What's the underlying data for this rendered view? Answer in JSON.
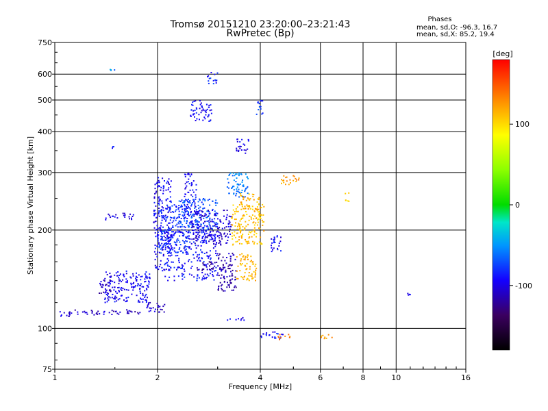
{
  "chart_data": {
    "type": "scatter",
    "title": "Tromsø 20151210 23:20:00–23:21:43",
    "subtitle": "RwPretec (Bp)",
    "xlabel": "Frequency [MHz]",
    "ylabel": "Stationary phase Virtual Height [km]",
    "x_scale": "log",
    "y_scale": "log",
    "xlim": [
      1,
      16
    ],
    "ylim": [
      75,
      750
    ],
    "x_ticks": [
      1,
      2,
      4,
      6,
      8,
      10,
      16
    ],
    "x_tick_labels": [
      "1",
      "2",
      "4",
      "6",
      "8",
      "10",
      "16"
    ],
    "y_ticks": [
      75,
      100,
      200,
      300,
      400,
      500,
      600,
      750
    ],
    "y_tick_labels": [
      "75",
      "100",
      "200",
      "300",
      "400",
      "500",
      "600",
      "750"
    ],
    "grid": true,
    "stats": {
      "header": "Phases",
      "line_o": "mean, sd,O: -96.3, 16.7",
      "line_x": "mean, sd,X:  85.2, 19.4"
    },
    "colorbar": {
      "label": "[deg]",
      "range": [
        -180,
        180
      ],
      "ticks": [
        100,
        0,
        -100
      ],
      "tick_labels": [
        "100",
        "0",
        "-100"
      ]
    },
    "clusters": [
      {
        "f": [
          1.02,
          1.12
        ],
        "h": [
          108,
          113
        ],
        "phase": -105
      },
      {
        "f": [
          1.1,
          1.8
        ],
        "h": [
          110,
          114
        ],
        "phase": -110
      },
      {
        "f": [
          1.8,
          2.1
        ],
        "h": [
          112,
          120
        ],
        "phase": -110
      },
      {
        "f": [
          1.4,
          1.9
        ],
        "h": [
          120,
          150
        ],
        "phase": -95
      },
      {
        "f": [
          1.35,
          1.5
        ],
        "h": [
          128,
          142
        ],
        "phase": -110
      },
      {
        "f": [
          1.95,
          2.2
        ],
        "h": [
          150,
          290
        ],
        "phase": -95
      },
      {
        "f": [
          2.0,
          2.5
        ],
        "h": [
          170,
          240
        ],
        "phase": -80
      },
      {
        "f": [
          2.1,
          3.0
        ],
        "h": [
          140,
          200
        ],
        "phase": -90
      },
      {
        "f": [
          2.3,
          3.0
        ],
        "h": [
          200,
          250
        ],
        "phase": -70
      },
      {
        "f": [
          2.5,
          3.3
        ],
        "h": [
          180,
          230
        ],
        "phase": -105
      },
      {
        "f": [
          2.6,
          3.2
        ],
        "h": [
          150,
          160
        ],
        "phase": -120
      },
      {
        "f": [
          3.0,
          3.4
        ],
        "h": [
          130,
          170
        ],
        "phase": -115
      },
      {
        "f": [
          3.3,
          4.1
        ],
        "h": [
          180,
          240
        ],
        "phase": 110
      },
      {
        "f": [
          3.4,
          3.9
        ],
        "h": [
          140,
          170
        ],
        "phase": 115
      },
      {
        "f": [
          3.5,
          4.0
        ],
        "h": [
          230,
          260
        ],
        "phase": 115
      },
      {
        "f": [
          3.4,
          3.7
        ],
        "h": [
          340,
          380
        ],
        "phase": -100
      },
      {
        "f": [
          3.9,
          4.1
        ],
        "h": [
          450,
          500
        ],
        "phase": -80
      },
      {
        "f": [
          2.5,
          2.9
        ],
        "h": [
          430,
          500
        ],
        "phase": -95
      },
      {
        "f": [
          2.8,
          3.0
        ],
        "h": [
          560,
          610
        ],
        "phase": -85
      },
      {
        "f": [
          4.6,
          5.2
        ],
        "h": [
          275,
          295
        ],
        "phase": 125
      },
      {
        "f": [
          3.2,
          3.6
        ],
        "h": [
          105,
          108
        ],
        "phase": -100
      },
      {
        "f": [
          4.0,
          4.7
        ],
        "h": [
          93,
          98
        ],
        "phase": -90
      },
      {
        "f": [
          4.5,
          4.9
        ],
        "h": [
          92,
          96
        ],
        "phase": 135
      },
      {
        "f": [
          4.3,
          4.6
        ],
        "h": [
          170,
          195
        ],
        "phase": -95
      },
      {
        "f": [
          1.4,
          1.7
        ],
        "h": [
          215,
          225
        ],
        "phase": -100
      },
      {
        "f": [
          7.1,
          7.3
        ],
        "h": [
          240,
          260
        ],
        "phase": 100
      },
      {
        "f": [
          10.8,
          11.0
        ],
        "h": [
          126,
          129
        ],
        "phase": -95
      },
      {
        "f": [
          6.0,
          6.5
        ],
        "h": [
          92,
          96
        ],
        "phase": 120
      },
      {
        "f": [
          1.45,
          1.5
        ],
        "h": [
          610,
          620
        ],
        "phase": -55
      },
      {
        "f": [
          1.45,
          1.5
        ],
        "h": [
          355,
          365
        ],
        "phase": -85
      },
      {
        "f": [
          2.4,
          2.6
        ],
        "h": [
          220,
          300
        ],
        "phase": -90
      },
      {
        "f": [
          3.2,
          3.7
        ],
        "h": [
          250,
          300
        ],
        "phase": -60
      }
    ]
  }
}
